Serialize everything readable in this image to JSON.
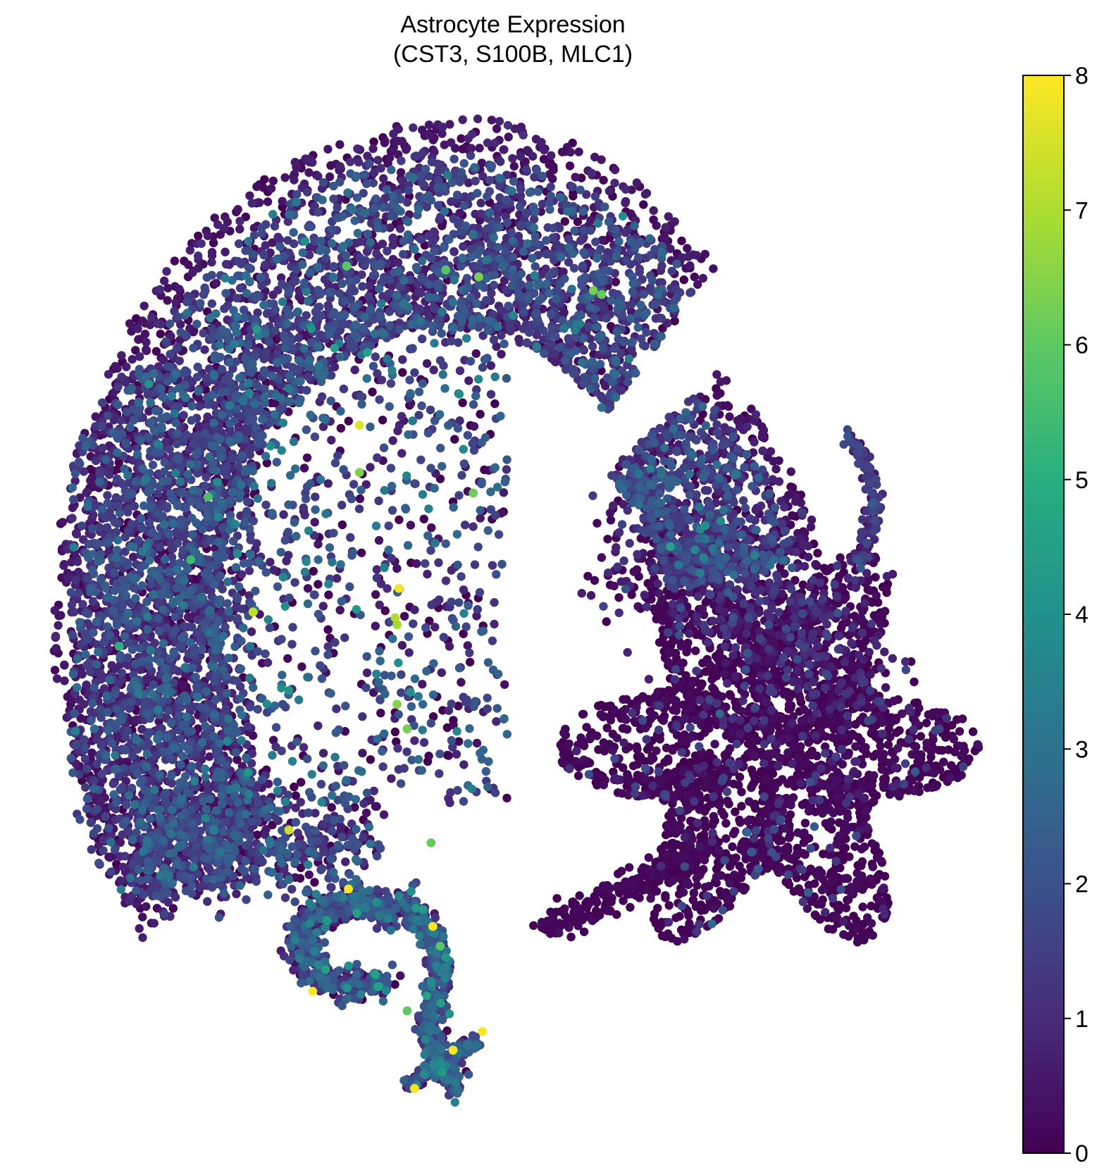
{
  "chart_data": {
    "type": "scatter",
    "title": "Astrocyte Expression\n(CST3, S100B, MLC1)",
    "title_lines": [
      "Astrocyte Expression",
      "(CST3, S100B, MLC1)"
    ],
    "xlabel": "",
    "ylabel": "",
    "axes_visible": false,
    "grid": false,
    "colormap": "viridis",
    "colormap_stops": [
      "#440154",
      "#472c7a",
      "#3b528b",
      "#2c728e",
      "#21918c",
      "#28ae80",
      "#5ec962",
      "#addc30",
      "#fde725"
    ],
    "xlim": [
      0,
      100
    ],
    "ylim": [
      0,
      100
    ],
    "colorbar": {
      "range": [
        0,
        8
      ],
      "ticks": [
        {
          "value": 0,
          "label": "0"
        },
        {
          "value": 1,
          "label": "1"
        },
        {
          "value": 2,
          "label": "2"
        },
        {
          "value": 3,
          "label": "3"
        },
        {
          "value": 4,
          "label": "4"
        },
        {
          "value": 5,
          "label": "5"
        },
        {
          "value": 6,
          "label": "6"
        },
        {
          "value": 7,
          "label": "7"
        },
        {
          "value": 8,
          "label": "8"
        }
      ],
      "placement": "right"
    },
    "regions": [
      {
        "name": "upper arc",
        "x": [
          0,
          88
        ],
        "y": [
          35,
          100
        ],
        "typical_expression": 1.3
      },
      {
        "name": "inner core",
        "x": [
          20,
          50
        ],
        "y": [
          25,
          70
        ],
        "typical_expression": 1.5
      },
      {
        "name": "right star cluster",
        "x": [
          54,
          99
        ],
        "y": [
          14,
          55
        ],
        "typical_expression": 0.1
      },
      {
        "name": "lower tail",
        "x": [
          25,
          46
        ],
        "y": [
          0,
          28
        ],
        "typical_expression": 1.6
      }
    ],
    "high_expression_points": [
      {
        "x": 33.2,
        "y": 68.2,
        "value": 7.6
      },
      {
        "x": 37.5,
        "y": 51.6,
        "value": 7.9
      },
      {
        "x": 37.1,
        "y": 48.6,
        "value": 7.1
      },
      {
        "x": 37.3,
        "y": 47.9,
        "value": 6.9
      },
      {
        "x": 21.6,
        "y": 49.2,
        "value": 7.3
      },
      {
        "x": 25.5,
        "y": 27.0,
        "value": 7.4
      },
      {
        "x": 32.0,
        "y": 21.0,
        "value": 7.9
      },
      {
        "x": 41.2,
        "y": 17.2,
        "value": 7.9
      },
      {
        "x": 28.1,
        "y": 10.6,
        "value": 7.9
      },
      {
        "x": 46.6,
        "y": 6.5,
        "value": 7.9
      },
      {
        "x": 43.4,
        "y": 4.6,
        "value": 7.9
      },
      {
        "x": 39.2,
        "y": 0.7,
        "value": 7.9
      },
      {
        "x": 33.2,
        "y": 63.4,
        "value": 6.4
      },
      {
        "x": 37.3,
        "y": 39.8,
        "value": 6.5
      },
      {
        "x": 38.4,
        "y": 37.3,
        "value": 6.3
      },
      {
        "x": 45.6,
        "y": 61.3,
        "value": 6.2
      },
      {
        "x": 46.2,
        "y": 83.3,
        "value": 6.3
      },
      {
        "x": 58.7,
        "y": 81.9,
        "value": 6.3
      },
      {
        "x": 59.6,
        "y": 81.5,
        "value": 6.1
      },
      {
        "x": 31.8,
        "y": 84.4,
        "value": 5.9
      },
      {
        "x": 42.6,
        "y": 84.0,
        "value": 5.8
      },
      {
        "x": 16.7,
        "y": 60.9,
        "value": 5.6
      },
      {
        "x": 14.8,
        "y": 54.5,
        "value": 5.4
      },
      {
        "x": 41.0,
        "y": 25.7,
        "value": 6.1
      },
      {
        "x": 42.0,
        "y": 15.2,
        "value": 5.9
      },
      {
        "x": 38.4,
        "y": 8.6,
        "value": 6.0
      },
      {
        "x": 7.0,
        "y": 45.7,
        "value": 5.1
      }
    ]
  }
}
